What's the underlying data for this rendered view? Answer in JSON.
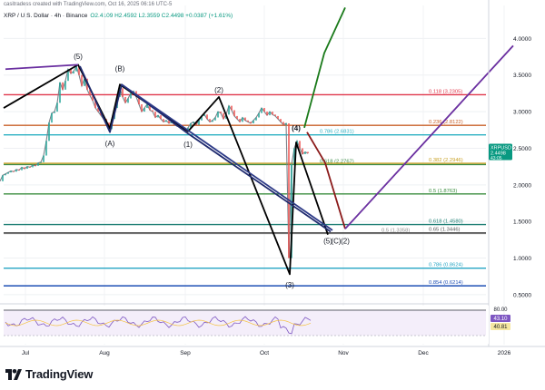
{
  "header": {
    "creator": "casitradess created with TradingView.com, Oct 16, 2025 06:16 UTC-5",
    "symbol": "XRP / U.S. Dollar · 4h · Binance",
    "ohlc": "O2.4109  H2.4592  L2.3559  C2.4498  +0.0387 (+1.61%)"
  },
  "price_tag": {
    "symbol": "XRPUSD",
    "price": "2.4498",
    "timer": "43:05",
    "color": "#089981"
  },
  "branding": {
    "logo_text": "TradingView"
  },
  "rsi": {
    "labels": [
      "80.00",
      "43.10",
      "40.81"
    ],
    "colors": [
      "#2a2e39",
      "#7e57c2",
      "#f5e7a1"
    ]
  },
  "chart_data": {
    "type": "line",
    "title": "",
    "x_ticks": [
      "Jul",
      "Aug",
      "Sep",
      "Oct",
      "Nov",
      "Dec",
      "2026"
    ],
    "y_ticks": [
      "4.0000",
      "3.5000",
      "3.0000",
      "2.5000",
      "2.0000",
      "1.5000",
      "1.0000",
      "0.5000"
    ],
    "ylim": [
      0.4,
      4.45
    ],
    "xlim": [
      0,
      600
    ],
    "price_series": [
      [
        0,
        2.05
      ],
      [
        3,
        2.13
      ],
      [
        6,
        2.15
      ],
      [
        9,
        2.17
      ],
      [
        12,
        2.19
      ],
      [
        15,
        2.18
      ],
      [
        18,
        2.21
      ],
      [
        21,
        2.2
      ],
      [
        24,
        2.24
      ],
      [
        27,
        2.22
      ],
      [
        30,
        2.25
      ],
      [
        33,
        2.24
      ],
      [
        36,
        2.27
      ],
      [
        39,
        2.26
      ],
      [
        42,
        2.3
      ],
      [
        45,
        2.31
      ],
      [
        48,
        2.4
      ],
      [
        51,
        2.6
      ],
      [
        54,
        2.85
      ],
      [
        57,
        2.98
      ],
      [
        60,
        3.0
      ],
      [
        63,
        3.12
      ],
      [
        66,
        3.4
      ],
      [
        69,
        3.3
      ],
      [
        72,
        3.42
      ],
      [
        75,
        3.58
      ],
      [
        78,
        3.52
      ],
      [
        81,
        3.55
      ],
      [
        84,
        3.62
      ],
      [
        87,
        3.5
      ],
      [
        90,
        3.35
      ],
      [
        93,
        3.45
      ],
      [
        96,
        3.3
      ],
      [
        99,
        3.22
      ],
      [
        102,
        3.15
      ],
      [
        105,
        3.05
      ],
      [
        108,
        3.0
      ],
      [
        111,
        2.95
      ],
      [
        114,
        2.9
      ],
      [
        117,
        2.85
      ],
      [
        120,
        2.76
      ],
      [
        123,
        2.9
      ],
      [
        126,
        3.05
      ],
      [
        129,
        3.2
      ],
      [
        132,
        3.32
      ],
      [
        135,
        3.2
      ],
      [
        138,
        3.12
      ],
      [
        141,
        3.18
      ],
      [
        144,
        3.25
      ],
      [
        147,
        3.28
      ],
      [
        150,
        3.2
      ],
      [
        153,
        3.1
      ],
      [
        156,
        3.0
      ],
      [
        159,
        3.05
      ],
      [
        162,
        3.1
      ],
      [
        165,
        3.02
      ],
      [
        168,
        3.0
      ],
      [
        171,
        2.92
      ],
      [
        174,
        2.95
      ],
      [
        177,
        2.9
      ],
      [
        180,
        2.86
      ],
      [
        183,
        2.88
      ],
      [
        186,
        2.84
      ],
      [
        189,
        2.86
      ],
      [
        192,
        2.82
      ],
      [
        195,
        2.8
      ],
      [
        198,
        2.82
      ],
      [
        201,
        2.78
      ],
      [
        204,
        2.74
      ],
      [
        207,
        2.78
      ],
      [
        210,
        2.84
      ],
      [
        213,
        2.86
      ],
      [
        216,
        2.82
      ],
      [
        219,
        2.88
      ],
      [
        222,
        2.94
      ],
      [
        225,
        2.96
      ],
      [
        228,
        2.9
      ],
      [
        231,
        2.86
      ],
      [
        234,
        2.88
      ],
      [
        237,
        2.92
      ],
      [
        240,
        3.0
      ],
      [
        243,
        2.98
      ],
      [
        246,
        2.9
      ],
      [
        249,
        2.96
      ],
      [
        252,
        3.08
      ],
      [
        255,
        3.02
      ],
      [
        258,
        2.94
      ],
      [
        261,
        2.9
      ],
      [
        264,
        2.86
      ],
      [
        267,
        2.92
      ],
      [
        270,
        2.88
      ],
      [
        273,
        2.86
      ],
      [
        276,
        2.84
      ],
      [
        279,
        2.88
      ],
      [
        282,
        2.92
      ],
      [
        285,
        2.98
      ],
      [
        288,
        3.05
      ],
      [
        291,
        3.0
      ],
      [
        294,
        2.95
      ],
      [
        297,
        3.0
      ],
      [
        300,
        2.96
      ],
      [
        303,
        2.94
      ],
      [
        306,
        2.9
      ],
      [
        309,
        2.86
      ],
      [
        312,
        2.82
      ],
      [
        315,
        2.84
      ],
      [
        318,
        1.0
      ],
      [
        321,
        2.28
      ],
      [
        324,
        2.5
      ],
      [
        327,
        2.6
      ],
      [
        330,
        2.5
      ],
      [
        333,
        2.42
      ],
      [
        336,
        2.45
      ],
      [
        339,
        2.43
      ]
    ],
    "horizontal_levels": [
      {
        "label": "0.118 (3.2305)",
        "value": 3.2305,
        "color": "#e0364a"
      },
      {
        "label": "0.236 (2.8122)",
        "value": 2.8122,
        "color": "#c8612a"
      },
      {
        "label": "0.786 (2.6831)",
        "value": 2.6831,
        "color": "#2bb0c2"
      },
      {
        "label": "0.618 (2.2767)",
        "value": 2.2767,
        "color": "#3b8c48"
      },
      {
        "label": "0.382 (2.2946)",
        "value": 2.2946,
        "color": "#c9a227"
      },
      {
        "label": "0.5 (1.8763)",
        "value": 1.8763,
        "color": "#3a8d3e"
      },
      {
        "label": "0.618 (1.4580)",
        "value": 1.458,
        "color": "#1e7f74"
      },
      {
        "label": "0.5 (1.3358)",
        "value": 1.3358,
        "color": "#8a8a8a"
      },
      {
        "label": "0.65 (1.3446)",
        "value": 1.3446,
        "color": "#555555"
      },
      {
        "label": "0.786 (0.8624)",
        "value": 0.8624,
        "color": "#26a5c4"
      },
      {
        "label": "0.854 (0.6214)",
        "value": 0.6214,
        "color": "#1f4fb5"
      }
    ],
    "annotations": [
      {
        "text": "(5)",
        "date_x": 86,
        "y": 3.72
      },
      {
        "text": "(B)",
        "date_x": 132,
        "y": 3.55
      },
      {
        "text": "(A)",
        "date_x": 121,
        "y": 2.53
      },
      {
        "text": "(2)",
        "date_x": 241,
        "y": 3.26
      },
      {
        "text": "(1)",
        "date_x": 207,
        "y": 2.52
      },
      {
        "text": "(4)",
        "date_x": 326,
        "y": 2.74
      },
      {
        "text": "(3)",
        "date_x": 319,
        "y": 0.6
      },
      {
        "text": "(5)",
        "date_x": 361,
        "y": 1.2
      },
      {
        "text": "(C)",
        "date_x": 370,
        "y": 1.2
      },
      {
        "text": "(2)",
        "date_x": 380,
        "y": 1.2
      }
    ],
    "wave_lines": [
      {
        "color": "#000000",
        "points": [
          [
            4,
            3.05
          ],
          [
            86,
            3.64
          ],
          [
            121,
            2.77
          ],
          [
            132,
            3.37
          ],
          [
            207,
            2.73
          ],
          [
            241,
            3.2
          ],
          [
            319,
            0.78
          ],
          [
            326,
            2.58
          ],
          [
            361,
            1.32
          ]
        ]
      },
      {
        "color": "#1f2a6e",
        "points": [
          [
            88,
            3.62
          ],
          [
            121,
            2.72
          ],
          [
            134,
            3.37
          ],
          [
            207,
            2.7
          ],
          [
            364,
            1.36
          ]
        ]
      },
      {
        "color": "#2d3a87",
        "points": [
          [
            134,
            3.37
          ],
          [
            366,
            1.38
          ]
        ]
      },
      {
        "color": "#1a7a1a",
        "points": [
          [
            335,
            2.78
          ],
          [
            357,
            3.8
          ],
          [
            380,
            4.42
          ]
        ]
      },
      {
        "color": "#8b1a1a",
        "points": [
          [
            338,
            2.72
          ],
          [
            358,
            2.3
          ],
          [
            380,
            1.4
          ]
        ]
      },
      {
        "color": "#6a2fa0",
        "points": [
          [
            6,
            3.58
          ],
          [
            86,
            3.64
          ]
        ]
      },
      {
        "color": "#6a2fa0",
        "points": [
          [
            380,
            1.4
          ],
          [
            565,
            3.9
          ]
        ]
      }
    ]
  }
}
